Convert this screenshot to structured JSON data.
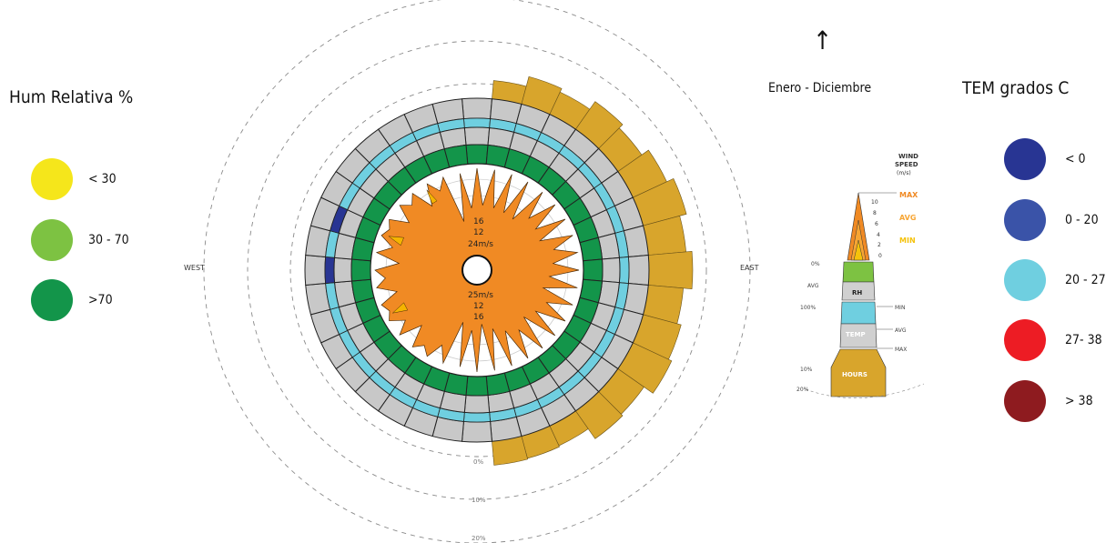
{
  "hum_legend": {
    "title": "Hum Relativa %",
    "items": [
      {
        "label": "< 30",
        "color": "#f5e61b"
      },
      {
        "label": "30 - 70",
        "color": "#7dc242"
      },
      {
        "label": ">70",
        "color": "#13954a"
      }
    ]
  },
  "tem_legend": {
    "title": "TEM grados C",
    "items": [
      {
        "label": "< 0",
        "color": "#283593"
      },
      {
        "label": "0 - 20",
        "color": "#3a53a8"
      },
      {
        "label": "20 - 27",
        "color": "#6fcfe0"
      },
      {
        "label": "27- 38",
        "color": "#ed1c24"
      },
      {
        "label": "> 38",
        "color": "#8e1b1f"
      }
    ]
  },
  "direction": {
    "arrow": "↑",
    "label": "Enero - Diciembre"
  },
  "rose": {
    "west_label": "WEST",
    "east_label": "EAST",
    "pct_labels": [
      "0%",
      "10%",
      "20%"
    ],
    "inner_labels_top": [
      "16",
      "12",
      "24m/s"
    ],
    "inner_labels_bottom": [
      "25m/s",
      "12",
      "16"
    ]
  },
  "key": {
    "wind_title_1": "WIND",
    "wind_title_2": "SPEED",
    "wind_title_3": "(m/s)",
    "max": "MAX",
    "avg": "AVG",
    "min": "MIN",
    "ticks": [
      "10",
      "8",
      "6",
      "4",
      "2",
      "0"
    ],
    "rh_label": "RH",
    "temp_label": "TEMP",
    "hours_label": "HOURS",
    "left_0": "0%",
    "left_avg": "AVG",
    "left_100": "100%",
    "right_min": "MIN",
    "right_avg": "AVG",
    "right_max": "MAX",
    "bottom_10": "10%",
    "bottom_20": "20%"
  },
  "colors": {
    "wind_max": "#f08a24",
    "wind_avg": "#f7a533",
    "wind_min": "#f5b400",
    "hours": "#d8a52c",
    "gray": "#c8c8c8",
    "temp_ring": "#6fcfe0",
    "rh_ring": "#13954a",
    "rh_low": "#7dc242",
    "cold": "#283593"
  }
}
